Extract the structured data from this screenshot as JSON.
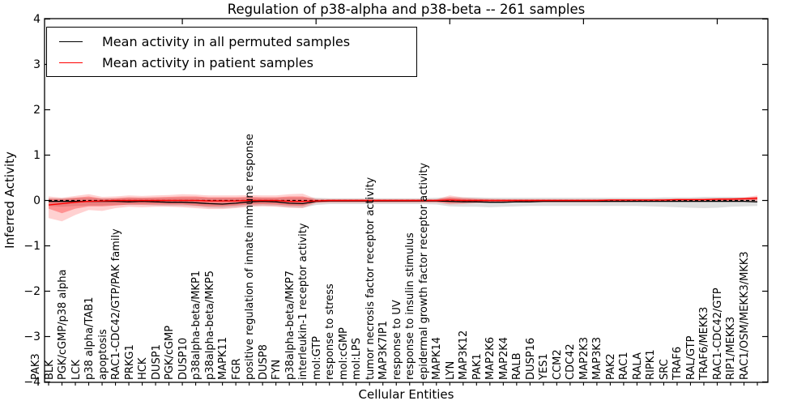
{
  "figure": {
    "background": "#ffffff",
    "title": "Regulation of p38-alpha and p38-beta -- 261 samples",
    "xlabel": "Cellular Entities",
    "ylabel": "Inferred Activity"
  },
  "legend": {
    "position": "upper-left",
    "entries": [
      {
        "label": "Mean activity in all permuted samples",
        "color": "#000000"
      },
      {
        "label": "Mean activity in patient samples",
        "color": "#ff0000"
      }
    ]
  },
  "chart_data": {
    "type": "line",
    "title": "Regulation of p38-alpha and p38-beta -- 261 samples",
    "xlabel": "Cellular Entities",
    "ylabel": "Inferred Activity",
    "ylim": [
      -4,
      4
    ],
    "yticks": [
      {
        "value": 4,
        "label": "4"
      },
      {
        "value": 3,
        "label": "3"
      },
      {
        "value": 2,
        "label": "2"
      },
      {
        "value": 1,
        "label": "1"
      },
      {
        "value": 0,
        "label": "0"
      },
      {
        "value": -1,
        "label": "−1"
      },
      {
        "value": -2,
        "label": "−2"
      },
      {
        "value": -3,
        "label": "−3"
      },
      {
        "value": -4,
        "label": "−4"
      }
    ],
    "top_tick_indices": [
      10,
      20,
      30,
      40,
      50
    ],
    "grid": false,
    "zero_line": {
      "style": "dashed",
      "color": "#000000"
    },
    "categories": [
      "PAK3",
      "BLK",
      "PGK/cGMP/p38 alpha",
      "LCK",
      "p38 alpha/TAB1",
      "apoptosis",
      "RAC1-CDC42/GTP/PAK family",
      "PRKG1",
      "HCK",
      "DUSP1",
      "PGK/cGMP",
      "DUSP10",
      "p38alpha-beta/MKP1",
      "p38alpha-beta/MKP5",
      "MAPK11",
      "FGR",
      "positive regulation of innate immune response",
      "DUSP8",
      "FYN",
      "p38alpha-beta/MKP7",
      "interleukin-1 receptor activity",
      "mol:GTP",
      "response to stress",
      "mol:cGMP",
      "mol:LPS",
      "tumor necrosis factor receptor activity",
      "MAP3K7IP1",
      "response to UV",
      "response to insulin stimulus",
      "epidermal growth factor receptor activity",
      "MAPK14",
      "LYN",
      "MAP3K12",
      "PAK1",
      "MAP2K6",
      "MAP2K4",
      "RALB",
      "DUSP16",
      "YES1",
      "CCM2",
      "CDC42",
      "MAP2K3",
      "MAP3K3",
      "PAK2",
      "RAC1",
      "RALA",
      "RIPK1",
      "SRC",
      "TRAF6",
      "RAL/GTP",
      "TRAF6/MEKK3",
      "RAC1-CDC42/GTP",
      "RIP1/MEKK3",
      "RAC1/OSM/MEKK3/MKK3"
    ],
    "series": [
      {
        "name": "Mean activity in all permuted samples",
        "color": "#000000",
        "values": [
          -0.02,
          -0.02,
          -0.02,
          -0.02,
          -0.02,
          -0.02,
          -0.03,
          -0.02,
          -0.03,
          -0.04,
          -0.04,
          -0.05,
          -0.07,
          -0.08,
          -0.06,
          -0.03,
          -0.02,
          -0.03,
          -0.06,
          -0.07,
          -0.02,
          -0.01,
          -0.01,
          -0.01,
          -0.01,
          -0.01,
          -0.01,
          -0.01,
          -0.01,
          -0.01,
          -0.02,
          -0.03,
          -0.03,
          -0.04,
          -0.04,
          -0.03,
          -0.03,
          -0.02,
          -0.02,
          -0.02,
          -0.02,
          -0.02,
          -0.02,
          -0.02,
          -0.02,
          -0.02,
          -0.02,
          -0.02,
          -0.02,
          -0.02,
          -0.02,
          -0.02,
          -0.02,
          -0.03
        ]
      },
      {
        "name": "Mean activity in patient samples",
        "color": "#ff0000",
        "values": [
          -0.1,
          -0.07,
          -0.04,
          -0.02,
          -0.01,
          0,
          0,
          0,
          0,
          0,
          0,
          0,
          -0.01,
          -0.01,
          -0.01,
          0,
          0,
          0,
          -0.02,
          -0.02,
          -0.01,
          0,
          0,
          0,
          0,
          0,
          0,
          0,
          0,
          0,
          0.01,
          0,
          0,
          0,
          0,
          0,
          0,
          0,
          0,
          0,
          0,
          0,
          0.01,
          0.01,
          0.01,
          0.01,
          0.01,
          0.02,
          0.02,
          0.02,
          0.03,
          0.03,
          0.04,
          0.05
        ]
      }
    ],
    "bands": [
      {
        "name": "permuted-samples-band",
        "color": "rgba(0,0,0,0.13)",
        "upper": [
          0.05,
          0.05,
          0.06,
          0.06,
          0.05,
          0.05,
          0.06,
          0.06,
          0.06,
          0.06,
          0.07,
          0.07,
          0.06,
          0.06,
          0.06,
          0.06,
          0.06,
          0.06,
          0.07,
          0.07,
          0.06,
          0.05,
          0.05,
          0.05,
          0.05,
          0.05,
          0.05,
          0.05,
          0.05,
          0.06,
          0.07,
          0.07,
          0.07,
          0.06,
          0.06,
          0.06,
          0.06,
          0.06,
          0.06,
          0.06,
          0.06,
          0.06,
          0.06,
          0.06,
          0.06,
          0.06,
          0.07,
          0.07,
          0.07,
          0.08,
          0.08,
          0.08,
          0.07,
          0.07
        ],
        "lower": [
          -0.12,
          -0.14,
          -0.12,
          -0.11,
          -0.11,
          -0.1,
          -0.1,
          -0.1,
          -0.11,
          -0.12,
          -0.12,
          -0.13,
          -0.16,
          -0.17,
          -0.15,
          -0.12,
          -0.11,
          -0.12,
          -0.15,
          -0.16,
          -0.1,
          -0.08,
          -0.08,
          -0.08,
          -0.08,
          -0.08,
          -0.08,
          -0.08,
          -0.08,
          -0.09,
          -0.13,
          -0.14,
          -0.14,
          -0.15,
          -0.14,
          -0.13,
          -0.12,
          -0.12,
          -0.12,
          -0.12,
          -0.12,
          -0.12,
          -0.12,
          -0.12,
          -0.12,
          -0.13,
          -0.14,
          -0.15,
          -0.16,
          -0.17,
          -0.16,
          -0.14,
          -0.13,
          -0.12
        ]
      },
      {
        "name": "patient-samples-band-outer",
        "color": "rgba(255,0,0,0.18)",
        "upper": [
          0.09,
          0.06,
          0.1,
          0.14,
          0.08,
          0.09,
          0.11,
          0.1,
          0.11,
          0.12,
          0.14,
          0.13,
          0.11,
          0.11,
          0.11,
          0.12,
          0.11,
          0.11,
          0.14,
          0.15,
          0.04,
          0.03,
          0.03,
          0.03,
          0.03,
          0.03,
          0.03,
          0.03,
          0.03,
          0.03,
          0.11,
          0.07,
          0.05,
          0.04,
          0.03,
          0.03,
          0.03,
          0.03,
          0.03,
          0.03,
          0.03,
          0.03,
          0.03,
          0.03,
          0.03,
          0.03,
          0.04,
          0.04,
          0.04,
          0.05,
          0.05,
          0.06,
          0.07,
          0.11
        ],
        "lower": [
          -0.39,
          -0.46,
          -0.32,
          -0.21,
          -0.23,
          -0.17,
          -0.14,
          -0.15,
          -0.14,
          -0.14,
          -0.15,
          -0.17,
          -0.19,
          -0.19,
          -0.17,
          -0.14,
          -0.13,
          -0.14,
          -0.16,
          -0.17,
          -0.06,
          -0.05,
          -0.05,
          -0.05,
          -0.05,
          -0.05,
          -0.05,
          -0.05,
          -0.05,
          -0.05,
          -0.09,
          -0.08,
          -0.06,
          -0.05,
          -0.04,
          -0.04,
          -0.04,
          -0.04,
          -0.04,
          -0.04,
          -0.04,
          -0.04,
          -0.04,
          -0.04,
          -0.03,
          -0.03,
          -0.03,
          -0.03,
          -0.03,
          -0.03,
          -0.02,
          -0.02,
          -0.02,
          -0.02
        ]
      },
      {
        "name": "patient-samples-band-inner",
        "color": "rgba(255,0,0,0.30)",
        "upper": [
          0.04,
          0.03,
          0.06,
          0.09,
          0.04,
          0.05,
          0.07,
          0.06,
          0.07,
          0.08,
          0.09,
          0.09,
          0.07,
          0.07,
          0.07,
          0.08,
          0.07,
          0.07,
          0.09,
          0.09,
          0.02,
          0.02,
          0.02,
          0.02,
          0.02,
          0.02,
          0.02,
          0.02,
          0.02,
          0.02,
          0.07,
          0.04,
          0.03,
          0.02,
          0.02,
          0.02,
          0.02,
          0.02,
          0.02,
          0.02,
          0.02,
          0.02,
          0.02,
          0.02,
          0.02,
          0.02,
          0.02,
          0.03,
          0.03,
          0.03,
          0.04,
          0.04,
          0.05,
          0.08
        ],
        "lower": [
          -0.18,
          -0.28,
          -0.18,
          -0.13,
          -0.13,
          -0.11,
          -0.09,
          -0.09,
          -0.09,
          -0.09,
          -0.09,
          -0.11,
          -0.13,
          -0.13,
          -0.11,
          -0.09,
          -0.08,
          -0.09,
          -0.11,
          -0.12,
          -0.04,
          -0.03,
          -0.03,
          -0.03,
          -0.03,
          -0.03,
          -0.03,
          -0.03,
          -0.03,
          -0.03,
          -0.06,
          -0.05,
          -0.04,
          -0.03,
          -0.03,
          -0.03,
          -0.03,
          -0.03,
          -0.03,
          -0.03,
          -0.03,
          -0.03,
          -0.02,
          -0.02,
          -0.02,
          -0.02,
          -0.02,
          -0.02,
          -0.02,
          -0.01,
          -0.01,
          -0.01,
          0.0,
          0.01
        ]
      }
    ]
  }
}
